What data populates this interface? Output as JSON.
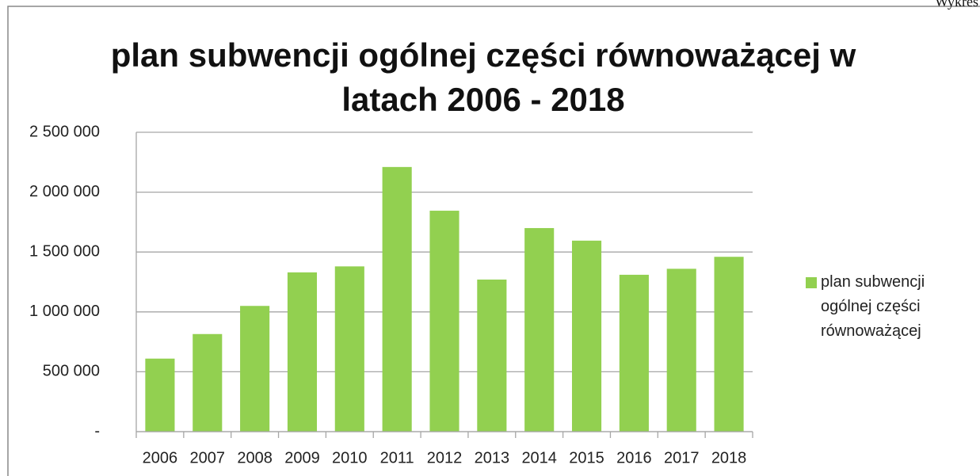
{
  "chart_data": {
    "type": "bar",
    "title": "plan subwencji ogólnej części równoważącej w latach 2006 - 2018",
    "annotation": "Wykres",
    "categories": [
      "2006",
      "2007",
      "2008",
      "2009",
      "2010",
      "2011",
      "2012",
      "2013",
      "2014",
      "2015",
      "2016",
      "2017",
      "2018"
    ],
    "series": [
      {
        "name": "plan subwencji ogólnej części równoważącej",
        "color": "#92d050",
        "values": [
          610000,
          815000,
          1050000,
          1330000,
          1380000,
          2210000,
          1845000,
          1270000,
          1700000,
          1595000,
          1310000,
          1360000,
          1460000
        ]
      }
    ],
    "ylim": [
      0,
      2500000
    ],
    "yticks": [
      {
        "value": 0,
        "label": "-"
      },
      {
        "value": 500000,
        "label": "500 000"
      },
      {
        "value": 1000000,
        "label": "1 000 000"
      },
      {
        "value": 1500000,
        "label": "1 500 000"
      },
      {
        "value": 2000000,
        "label": "2 000 000"
      },
      {
        "value": 2500000,
        "label": "2 500 000"
      }
    ],
    "grid": true,
    "legend": "right"
  }
}
